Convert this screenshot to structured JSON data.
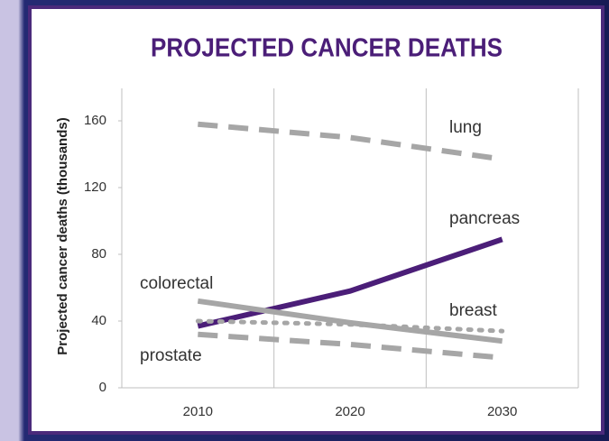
{
  "chart_data": {
    "type": "line",
    "title": "PROJECTED CANCER DEATHS",
    "y_label": "Projected cancer deaths (thousands)",
    "categories": [
      "2010",
      "2020",
      "2030"
    ],
    "ylim": [
      0,
      160
    ],
    "yticks": [
      0,
      40,
      80,
      120,
      160
    ],
    "grid": true,
    "series": [
      {
        "name": "lung",
        "color": "#a6a6a6",
        "style": "dashed",
        "values": [
          158,
          150,
          137
        ]
      },
      {
        "name": "pancreas",
        "color": "#4b1e78",
        "style": "solid",
        "values": [
          37,
          58,
          89
        ]
      },
      {
        "name": "colorectal",
        "color": "#a6a6a6",
        "style": "solid",
        "values": [
          52,
          39,
          28
        ]
      },
      {
        "name": "breast",
        "color": "#a6a6a6",
        "style": "dotted",
        "values": [
          40,
          38,
          34
        ]
      },
      {
        "name": "prostate",
        "color": "#a6a6a6",
        "style": "dashed",
        "values": [
          32,
          26,
          18
        ]
      }
    ]
  }
}
